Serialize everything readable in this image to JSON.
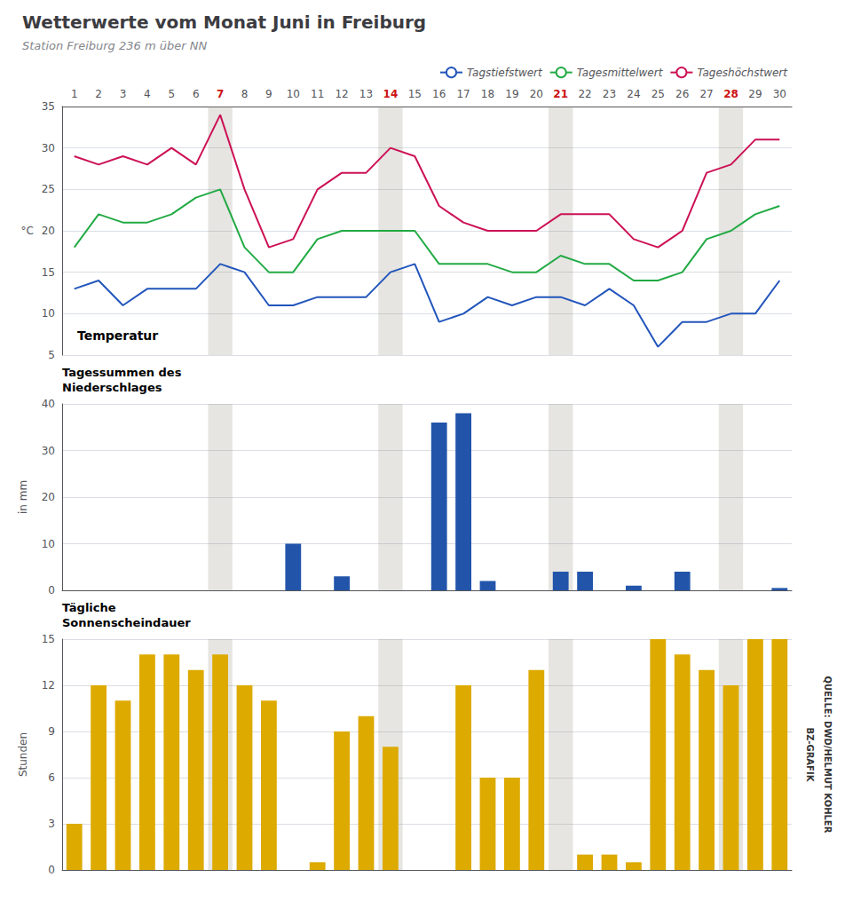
{
  "chart_data": [
    {
      "type": "line",
      "title": "Wetterwerte vom Monat Juni in Freiburg",
      "subtitle": "Station Freiburg 236 m über NN",
      "categories": [
        1,
        2,
        3,
        4,
        5,
        6,
        7,
        8,
        9,
        10,
        11,
        12,
        13,
        14,
        15,
        16,
        17,
        18,
        19,
        20,
        21,
        22,
        23,
        24,
        25,
        26,
        27,
        28,
        29,
        30
      ],
      "highlighted_categories": [
        7,
        14,
        21,
        28
      ],
      "series": [
        {
          "name": "Tagstiefstwert",
          "color": "#2255bb",
          "values": [
            13,
            14,
            11,
            13,
            13,
            13,
            16,
            15,
            11,
            11,
            12,
            12,
            12,
            15,
            16,
            9,
            10,
            12,
            11,
            12,
            12,
            11,
            13,
            11,
            6,
            9,
            9,
            10,
            10,
            14
          ]
        },
        {
          "name": "Tagesmittelwert",
          "color": "#22aa44",
          "values": [
            18,
            22,
            21,
            21,
            22,
            24,
            25,
            18,
            15,
            15,
            19,
            20,
            20,
            20,
            20,
            16,
            16,
            16,
            15,
            15,
            17,
            16,
            16,
            14,
            14,
            15,
            19,
            20,
            22,
            23
          ]
        },
        {
          "name": "Tageshöchstwert",
          "color": "#cc1155",
          "values": [
            29,
            28,
            29,
            28,
            30,
            28,
            34,
            25,
            18,
            19,
            25,
            27,
            27,
            30,
            29,
            23,
            21,
            20,
            20,
            20,
            22,
            22,
            22,
            19,
            18,
            20,
            27,
            28,
            31,
            31
          ]
        }
      ],
      "ylabel": "°C",
      "ylim": [
        5,
        35
      ],
      "yticks": [
        5,
        10,
        15,
        20,
        25,
        30,
        35
      ],
      "grid": true,
      "legend": "upper right",
      "annotations": [
        "Temperatur"
      ]
    },
    {
      "type": "bar",
      "categories": [
        1,
        2,
        3,
        4,
        5,
        6,
        7,
        8,
        9,
        10,
        11,
        12,
        13,
        14,
        15,
        16,
        17,
        18,
        19,
        20,
        21,
        22,
        23,
        24,
        25,
        26,
        27,
        28,
        29,
        30
      ],
      "highlighted_categories": [
        7,
        14,
        21,
        28
      ],
      "values": [
        0,
        0,
        0,
        0,
        0,
        0,
        0,
        0,
        0,
        10,
        0,
        3,
        0,
        0,
        0,
        36,
        38,
        2,
        0,
        0,
        4,
        4,
        0,
        1,
        0,
        4,
        0,
        0,
        0,
        0.5
      ],
      "color": "#2255aa",
      "ylabel": "in mm",
      "ylim": [
        0,
        40
      ],
      "yticks": [
        0,
        10,
        20,
        30,
        40
      ],
      "grid": true,
      "tick_labels": "y",
      "annotations": [
        "Tagessummen des\nNiederschlages"
      ]
    },
    {
      "type": "bar",
      "categories": [
        1,
        2,
        3,
        4,
        5,
        6,
        7,
        8,
        9,
        10,
        11,
        12,
        13,
        14,
        15,
        16,
        17,
        18,
        19,
        20,
        21,
        22,
        23,
        24,
        25,
        26,
        27,
        28,
        29,
        30
      ],
      "highlighted_categories": [
        7,
        14,
        21,
        28
      ],
      "values": [
        3,
        12,
        11,
        14,
        14,
        13,
        14,
        12,
        11,
        0,
        0.5,
        9,
        10,
        8,
        0,
        0,
        12,
        6,
        6,
        13,
        0,
        1,
        1,
        0.5,
        15,
        14,
        13,
        12,
        15,
        15
      ],
      "color": "#ddaa00",
      "ylabel": "Stunden",
      "ylim": [
        0,
        15
      ],
      "yticks": [
        0,
        3,
        6,
        9,
        12,
        15
      ],
      "grid": true,
      "tick_labels": "y",
      "annotations": [
        "Tägliche\nSonnenscheindauer",
        "QUELLE: DWD/HELMUT KOHLER",
        "BZ-GRAFIK"
      ]
    }
  ]
}
